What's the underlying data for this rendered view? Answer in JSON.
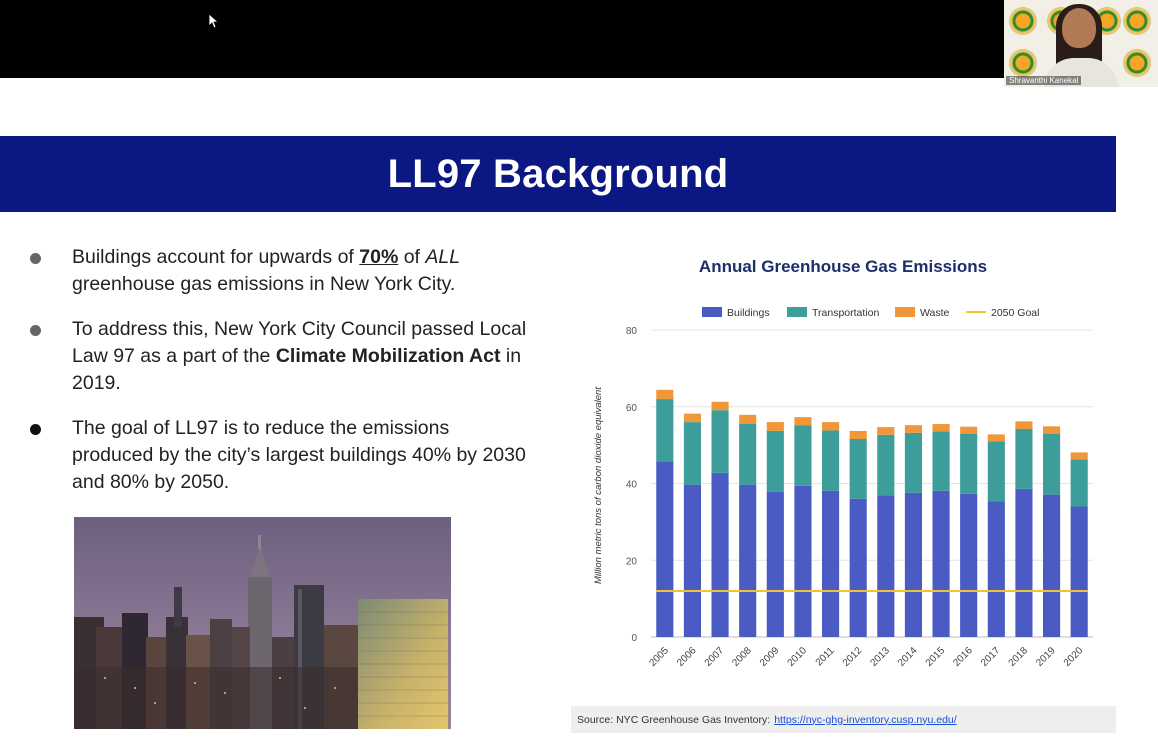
{
  "webcam": {
    "participant_name": "Shravanthi Kanekal"
  },
  "slide": {
    "title": "LL97 Background",
    "bullets": [
      {
        "parts": [
          "Buildings account for upwards of ",
          "70%",
          " of ",
          "ALL",
          " greenhouse gas emissions in New York City."
        ]
      },
      {
        "parts": [
          "To address this, New York City Council passed Local Law 97 as a part of the ",
          "Climate Mobilization Act",
          " in 2019."
        ]
      },
      {
        "parts": [
          "The goal of LL97 is to reduce the emissions produced by the city’s largest buildings 40% by 2030 and 80% by 2050."
        ]
      }
    ],
    "source_label": "Source: NYC Greenhouse Gas Inventory:",
    "source_link": "https://nyc-ghg-inventory.cusp.nyu.edu/"
  },
  "colors": {
    "banner": "#0b1782",
    "buildings": "#4a5bc4",
    "transportation": "#3d9d9a",
    "waste": "#f0973a",
    "goal": "#f1c232",
    "chart_title": "#1d2e6e"
  },
  "chart_data": {
    "type": "bar",
    "stacked": true,
    "title": "Annual Greenhouse Gas Emissions",
    "xlabel": "",
    "ylabel": "Million metric tons of carbon dioxide equivalent",
    "ylim": [
      0,
      80
    ],
    "yticks": [
      0,
      20,
      40,
      60,
      80
    ],
    "grid": true,
    "legend_position": "top",
    "categories": [
      "2005",
      "2006",
      "2007",
      "2008",
      "2009",
      "2010",
      "2011",
      "2012",
      "2013",
      "2014",
      "2015",
      "2016",
      "2017",
      "2018",
      "2019",
      "2020"
    ],
    "series": [
      {
        "name": "Buildings",
        "values": [
          45.8,
          39.7,
          42.8,
          39.7,
          37.8,
          39.4,
          38.1,
          36.0,
          36.9,
          37.6,
          38.1,
          37.3,
          35.4,
          38.6,
          37.1,
          34.0
        ]
      },
      {
        "name": "Transportation",
        "values": [
          16.2,
          16.3,
          16.3,
          15.9,
          15.9,
          15.8,
          15.7,
          15.6,
          15.8,
          15.6,
          15.5,
          15.7,
          15.6,
          15.6,
          15.9,
          12.3
        ]
      },
      {
        "name": "Waste",
        "values": [
          2.4,
          2.2,
          2.2,
          2.3,
          2.3,
          2.1,
          2.2,
          2.1,
          2.0,
          2.0,
          1.9,
          1.8,
          1.8,
          2.0,
          1.9,
          1.8
        ]
      }
    ],
    "lines": [
      {
        "name": "2050 Goal",
        "value": 12.0
      }
    ]
  }
}
